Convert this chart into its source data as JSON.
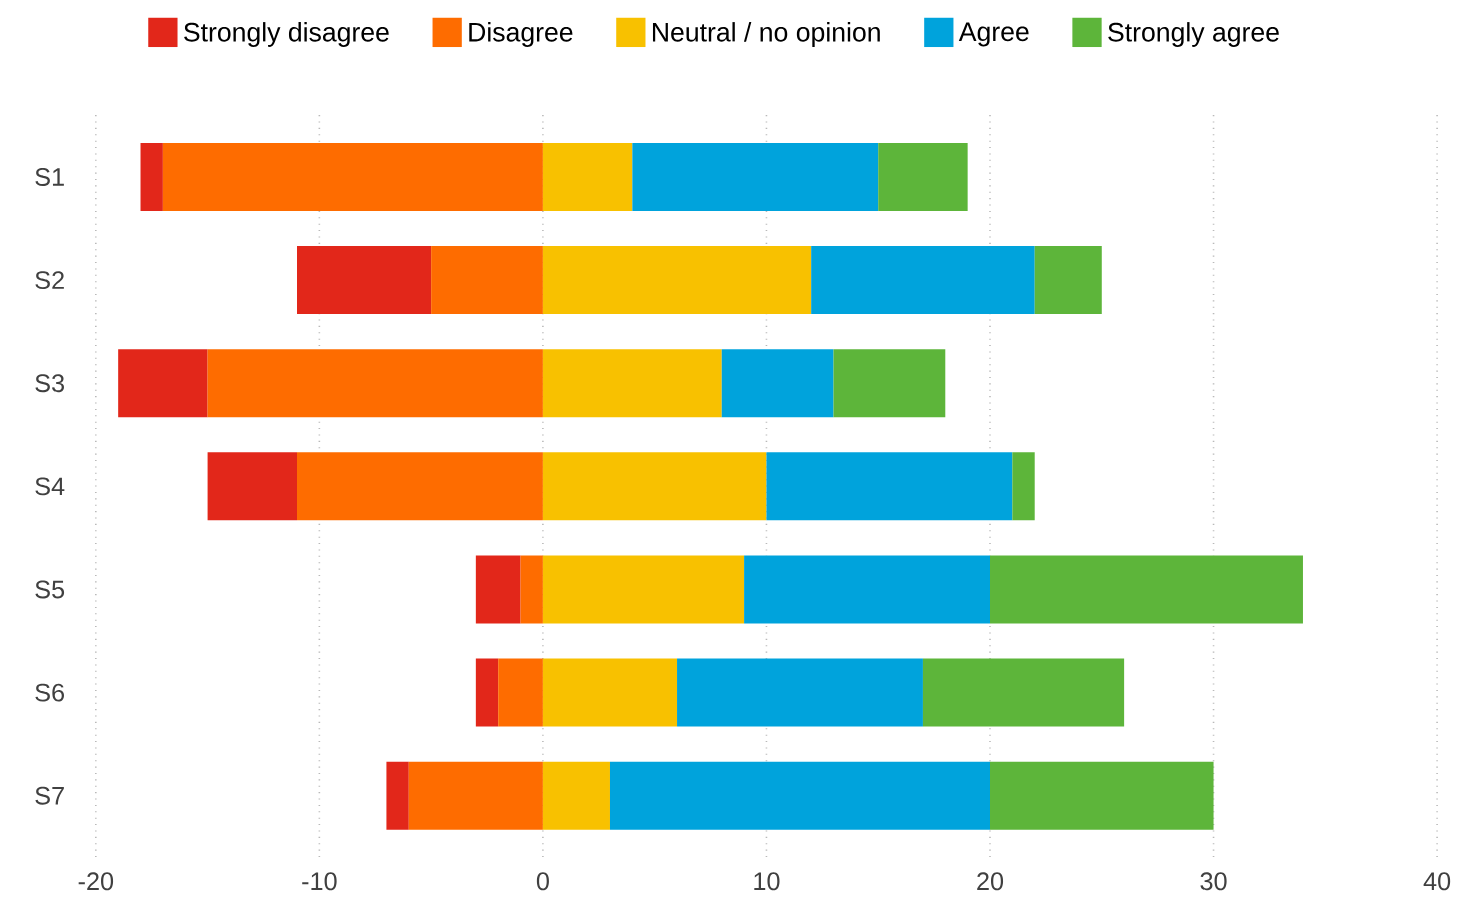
{
  "chart_data": {
    "type": "bar",
    "orientation": "horizontal",
    "categories": [
      "S1",
      "S2",
      "S3",
      "S4",
      "S5",
      "S6",
      "S7"
    ],
    "series": [
      {
        "name": "Strongly disagree",
        "color": "#e2271a",
        "base": [
          -18,
          -11,
          -19,
          -15,
          -3,
          -3,
          -7
        ],
        "values": [
          1,
          6,
          4,
          4,
          2,
          1,
          1
        ]
      },
      {
        "name": "Disagree",
        "color": "#fe6c00",
        "base": [
          -17,
          -5,
          -15,
          -11,
          -1,
          -2,
          -6
        ],
        "values": [
          17,
          5,
          15,
          11,
          1,
          2,
          6
        ]
      },
      {
        "name": "Neutral / no opinion",
        "color": "#f8c100",
        "base": [
          0,
          0,
          0,
          0,
          0,
          0,
          0
        ],
        "values": [
          4,
          12,
          8,
          10,
          9,
          6,
          3
        ]
      },
      {
        "name": "Agree",
        "color": "#00a3dc",
        "base": [
          4,
          12,
          8,
          10,
          9,
          6,
          3
        ],
        "values": [
          11,
          10,
          5,
          11,
          11,
          11,
          17
        ]
      },
      {
        "name": "Strongly agree",
        "color": "#5db53a",
        "base": [
          15,
          22,
          13,
          21,
          20,
          17,
          20
        ],
        "values": [
          4,
          3,
          5,
          1,
          14,
          9,
          10
        ]
      }
    ],
    "xlim": [
      -20,
      40
    ],
    "xticks": [
      -20,
      -10,
      0,
      10,
      20,
      30,
      40
    ],
    "grid": "x",
    "legend": "top"
  }
}
